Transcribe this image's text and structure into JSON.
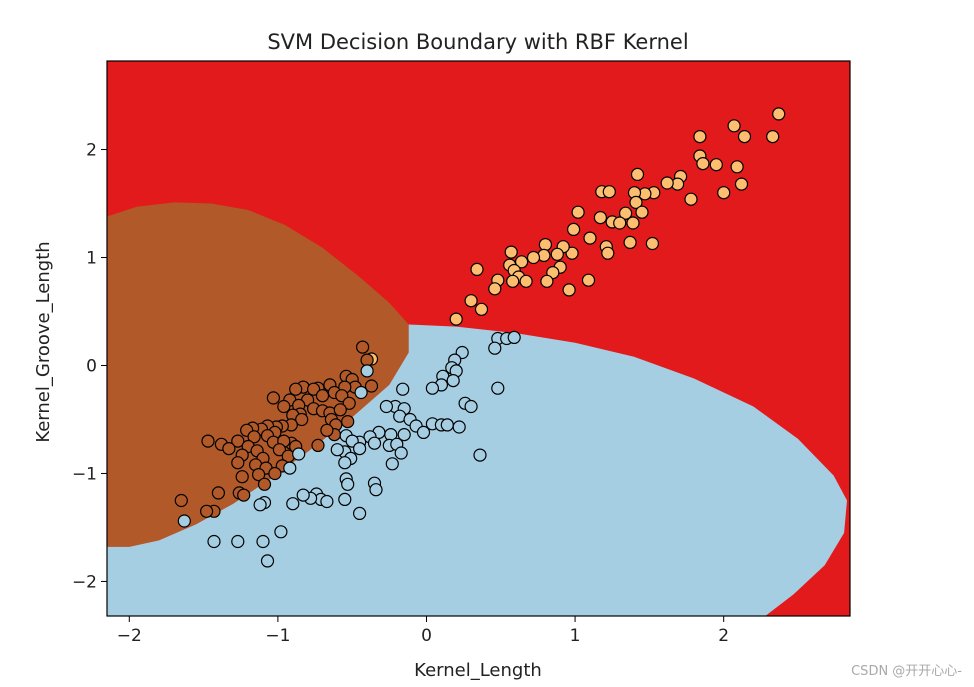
{
  "chart_data": {
    "type": "scatter",
    "title": "SVM Decision Boundary with RBF Kernel",
    "xlabel": "Kernel_Length",
    "ylabel": "Kernel_Groove_Length",
    "xlim": [
      -2.15,
      2.85
    ],
    "ylim": [
      -2.32,
      2.82
    ],
    "xticks": [
      -2,
      -1,
      0,
      1,
      2
    ],
    "yticks": [
      -2,
      -1,
      0,
      1,
      2
    ],
    "tick_labels_x": [
      "−2",
      "−1",
      "0",
      "1",
      "2"
    ],
    "tick_labels_y": [
      "−2",
      "−1",
      "0",
      "1",
      "2"
    ],
    "colors": {
      "background_region": "#e31a1c",
      "class_brown_region": "#b15928",
      "class_blue_region": "#a6cee3",
      "class_orange_point": "#fdbf6f",
      "class_brown_point": "#b15928",
      "class_blue_point": "#a6cee3",
      "point_edge": "#000000"
    },
    "regions": [
      {
        "name": "brown-region",
        "color": "#b15928",
        "polygon": [
          [
            -2.15,
            1.38
          ],
          [
            -1.95,
            1.47
          ],
          [
            -1.7,
            1.51
          ],
          [
            -1.45,
            1.5
          ],
          [
            -1.2,
            1.44
          ],
          [
            -0.95,
            1.3
          ],
          [
            -0.7,
            1.09
          ],
          [
            -0.45,
            0.82
          ],
          [
            -0.25,
            0.58
          ],
          [
            -0.12,
            0.38
          ],
          [
            -0.12,
            0.12
          ],
          [
            -0.25,
            -0.18
          ],
          [
            -0.5,
            -0.48
          ],
          [
            -0.8,
            -0.8
          ],
          [
            -1.05,
            -1.05
          ],
          [
            -1.3,
            -1.28
          ],
          [
            -1.55,
            -1.47
          ],
          [
            -1.8,
            -1.62
          ],
          [
            -2.0,
            -1.68
          ],
          [
            -2.15,
            -1.68
          ]
        ]
      },
      {
        "name": "blue-region",
        "color": "#a6cee3",
        "polygon": [
          [
            -0.12,
            0.38
          ],
          [
            0.2,
            0.36
          ],
          [
            0.6,
            0.3
          ],
          [
            1.0,
            0.21
          ],
          [
            1.4,
            0.08
          ],
          [
            1.8,
            -0.12
          ],
          [
            2.2,
            -0.38
          ],
          [
            2.5,
            -0.68
          ],
          [
            2.74,
            -1.02
          ],
          [
            2.83,
            -1.25
          ],
          [
            2.81,
            -1.55
          ],
          [
            2.68,
            -1.85
          ],
          [
            2.47,
            -2.12
          ],
          [
            2.28,
            -2.32
          ],
          [
            -2.15,
            -2.32
          ],
          [
            -2.15,
            -1.68
          ],
          [
            -2.0,
            -1.68
          ],
          [
            -1.8,
            -1.62
          ],
          [
            -1.55,
            -1.47
          ],
          [
            -1.3,
            -1.28
          ],
          [
            -1.05,
            -1.05
          ],
          [
            -0.8,
            -0.8
          ],
          [
            -0.5,
            -0.48
          ],
          [
            -0.25,
            -0.18
          ],
          [
            -0.12,
            0.12
          ]
        ]
      }
    ],
    "series": [
      {
        "name": "orange-class",
        "color": "#fdbf6f",
        "points": [
          [
            2.37,
            2.33
          ],
          [
            2.07,
            2.22
          ],
          [
            2.14,
            2.12
          ],
          [
            2.33,
            2.12
          ],
          [
            1.84,
            2.12
          ],
          [
            1.84,
            1.94
          ],
          [
            1.86,
            1.87
          ],
          [
            2.09,
            1.84
          ],
          [
            1.95,
            1.86
          ],
          [
            1.42,
            1.77
          ],
          [
            1.71,
            1.75
          ],
          [
            1.69,
            1.68
          ],
          [
            1.62,
            1.69
          ],
          [
            2.12,
            1.68
          ],
          [
            1.53,
            1.6
          ],
          [
            1.47,
            1.59
          ],
          [
            1.4,
            1.6
          ],
          [
            1.18,
            1.61
          ],
          [
            1.23,
            1.61
          ],
          [
            2.0,
            1.6
          ],
          [
            1.78,
            1.54
          ],
          [
            1.41,
            1.51
          ],
          [
            1.34,
            1.41
          ],
          [
            1.45,
            1.42
          ],
          [
            1.17,
            1.37
          ],
          [
            1.25,
            1.33
          ],
          [
            1.39,
            1.32
          ],
          [
            1.3,
            1.32
          ],
          [
            1.02,
            1.42
          ],
          [
            1.52,
            1.13
          ],
          [
            0.99,
            1.26
          ],
          [
            1.1,
            1.18
          ],
          [
            1.21,
            1.1
          ],
          [
            1.37,
            1.14
          ],
          [
            1.22,
            1.04
          ],
          [
            0.98,
            1.04
          ],
          [
            0.8,
            1.12
          ],
          [
            0.92,
            1.1
          ],
          [
            0.88,
            1.03
          ],
          [
            0.79,
            1.02
          ],
          [
            0.72,
            1.0
          ],
          [
            0.57,
            1.05
          ],
          [
            0.56,
            0.93
          ],
          [
            0.64,
            0.96
          ],
          [
            0.59,
            0.88
          ],
          [
            0.9,
            0.91
          ],
          [
            0.85,
            0.86
          ],
          [
            0.62,
            0.82
          ],
          [
            0.34,
            0.89
          ],
          [
            0.48,
            0.79
          ],
          [
            0.58,
            0.78
          ],
          [
            0.67,
            0.78
          ],
          [
            0.81,
            0.78
          ],
          [
            1.09,
            0.79
          ],
          [
            0.46,
            0.71
          ],
          [
            0.96,
            0.7
          ],
          [
            0.3,
            0.6
          ],
          [
            0.37,
            0.52
          ],
          [
            0.2,
            0.43
          ],
          [
            -0.37,
            0.06
          ]
        ]
      },
      {
        "name": "brown-class",
        "color": "#b15928",
        "points": [
          [
            -0.43,
            0.17
          ],
          [
            -0.4,
            0.05
          ],
          [
            -0.54,
            -0.1
          ],
          [
            -0.5,
            -0.13
          ],
          [
            -0.48,
            -0.2
          ],
          [
            -0.55,
            -0.2
          ],
          [
            -0.37,
            -0.19
          ],
          [
            -0.65,
            -0.18
          ],
          [
            -0.73,
            -0.21
          ],
          [
            -0.83,
            -0.2
          ],
          [
            -0.88,
            -0.22
          ],
          [
            -0.76,
            -0.22
          ],
          [
            -0.62,
            -0.25
          ],
          [
            -0.57,
            -0.28
          ],
          [
            -0.7,
            -0.28
          ],
          [
            -0.52,
            -0.35
          ],
          [
            -0.8,
            -0.32
          ],
          [
            -1.03,
            -0.3
          ],
          [
            -0.92,
            -0.32
          ],
          [
            -0.96,
            -0.38
          ],
          [
            -0.86,
            -0.37
          ],
          [
            -0.76,
            -0.4
          ],
          [
            -0.85,
            -0.45
          ],
          [
            -0.7,
            -0.42
          ],
          [
            -0.65,
            -0.44
          ],
          [
            -0.58,
            -0.41
          ],
          [
            -0.9,
            -0.46
          ],
          [
            -0.84,
            -0.5
          ],
          [
            -0.64,
            -0.5
          ],
          [
            -0.61,
            -0.55
          ],
          [
            -0.91,
            -0.55
          ],
          [
            -0.97,
            -0.56
          ],
          [
            -1.01,
            -0.57
          ],
          [
            -1.07,
            -0.56
          ],
          [
            -1.11,
            -0.59
          ],
          [
            -1.17,
            -0.58
          ],
          [
            -1.21,
            -0.6
          ],
          [
            -1.02,
            -0.62
          ],
          [
            -1.16,
            -0.66
          ],
          [
            -1.07,
            -0.65
          ],
          [
            -1.27,
            -0.7
          ],
          [
            -1.38,
            -0.73
          ],
          [
            -1.33,
            -0.77
          ],
          [
            -1.2,
            -0.75
          ],
          [
            -1.14,
            -0.79
          ],
          [
            -1.03,
            -0.71
          ],
          [
            -0.91,
            -0.72
          ],
          [
            -0.96,
            -0.7
          ],
          [
            -0.88,
            -0.75
          ],
          [
            -0.73,
            -0.74
          ],
          [
            -0.62,
            -0.64
          ],
          [
            -0.67,
            -0.6
          ],
          [
            -0.99,
            -0.78
          ],
          [
            -0.93,
            -0.84
          ],
          [
            -1.1,
            -0.86
          ],
          [
            -1.24,
            -0.83
          ],
          [
            -1.27,
            -0.9
          ],
          [
            -1.15,
            -0.92
          ],
          [
            -1.08,
            -0.95
          ],
          [
            -0.97,
            -0.93
          ],
          [
            -1.02,
            -1.0
          ],
          [
            -1.13,
            -1.01
          ],
          [
            -1.24,
            -1.03
          ],
          [
            -1.09,
            -1.1
          ],
          [
            -1.26,
            -1.18
          ],
          [
            -1.23,
            -1.2
          ],
          [
            -1.47,
            -0.7
          ],
          [
            -1.43,
            -1.35
          ],
          [
            -1.48,
            -1.35
          ],
          [
            -1.4,
            -1.18
          ],
          [
            -1.65,
            -1.25
          ],
          [
            -0.53,
            -0.52
          ]
        ]
      },
      {
        "name": "blue-class",
        "color": "#a6cee3",
        "points": [
          [
            0.48,
            0.25
          ],
          [
            0.54,
            0.25
          ],
          [
            0.59,
            0.26
          ],
          [
            0.46,
            0.16
          ],
          [
            0.24,
            0.12
          ],
          [
            0.19,
            0.05
          ],
          [
            0.17,
            -0.02
          ],
          [
            0.2,
            -0.05
          ],
          [
            0.11,
            -0.1
          ],
          [
            0.18,
            -0.14
          ],
          [
            0.1,
            -0.18
          ],
          [
            0.04,
            -0.21
          ],
          [
            0.48,
            -0.21
          ],
          [
            0.26,
            -0.35
          ],
          [
            0.3,
            -0.38
          ],
          [
            -0.16,
            -0.22
          ],
          [
            -0.21,
            -0.38
          ],
          [
            -0.27,
            -0.38
          ],
          [
            -0.15,
            -0.4
          ],
          [
            -0.18,
            -0.47
          ],
          [
            -0.11,
            -0.5
          ],
          [
            -0.07,
            -0.56
          ],
          [
            0.04,
            -0.54
          ],
          [
            0.1,
            -0.55
          ],
          [
            0.14,
            -0.55
          ],
          [
            0.22,
            -0.57
          ],
          [
            -0.02,
            -0.62
          ],
          [
            -0.15,
            -0.64
          ],
          [
            -0.24,
            -0.64
          ],
          [
            -0.32,
            -0.62
          ],
          [
            -0.38,
            -0.66
          ],
          [
            -0.35,
            -0.72
          ],
          [
            -0.25,
            -0.74
          ],
          [
            -0.2,
            -0.73
          ],
          [
            -0.45,
            -0.71
          ],
          [
            -0.54,
            -0.65
          ],
          [
            -0.5,
            -0.7
          ],
          [
            -0.55,
            -0.8
          ],
          [
            -0.45,
            -0.77
          ],
          [
            -0.51,
            -0.86
          ],
          [
            -0.55,
            -0.9
          ],
          [
            -0.17,
            -0.81
          ],
          [
            -0.23,
            -0.91
          ],
          [
            0.36,
            -0.83
          ],
          [
            -0.6,
            -0.78
          ],
          [
            -0.86,
            -0.82
          ],
          [
            -0.54,
            -1.05
          ],
          [
            -0.74,
            -1.19
          ],
          [
            -0.71,
            -1.24
          ],
          [
            -0.78,
            -1.23
          ],
          [
            -0.83,
            -1.2
          ],
          [
            -0.9,
            -1.28
          ],
          [
            -0.67,
            -1.26
          ],
          [
            -0.55,
            -1.24
          ],
          [
            -0.53,
            -1.1
          ],
          [
            -0.35,
            -1.09
          ],
          [
            -0.34,
            -1.15
          ],
          [
            -0.45,
            -1.37
          ],
          [
            -1.09,
            -1.27
          ],
          [
            -1.12,
            -1.29
          ],
          [
            -1.07,
            -1.81
          ],
          [
            -1.1,
            -1.63
          ],
          [
            -1.27,
            -1.63
          ],
          [
            -1.43,
            -1.63
          ],
          [
            -0.98,
            -1.54
          ],
          [
            -1.63,
            -1.44
          ],
          [
            -0.92,
            -0.95
          ],
          [
            -0.44,
            -0.25
          ],
          [
            -0.4,
            -0.05
          ]
        ]
      }
    ]
  },
  "watermark": "CSDN @开开心心-"
}
